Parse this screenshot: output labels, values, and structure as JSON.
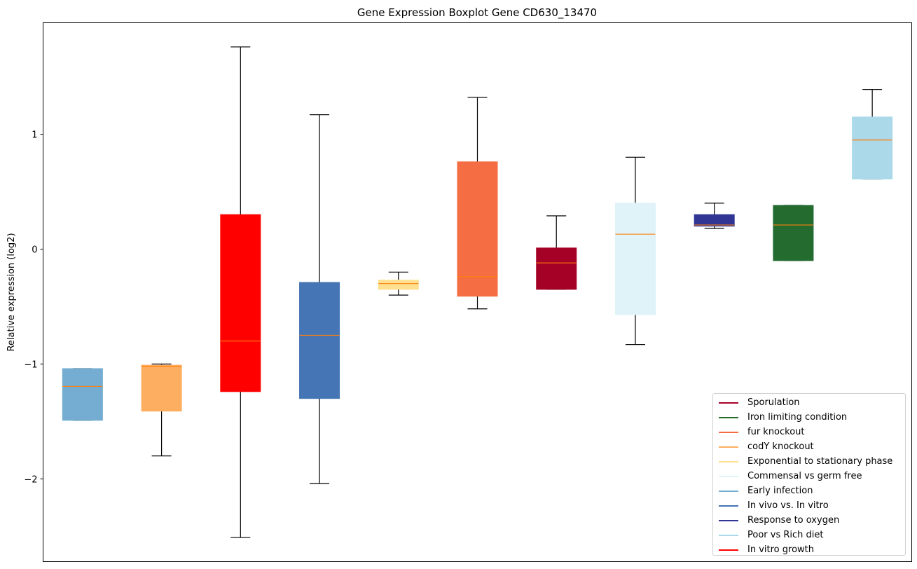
{
  "chart_data": {
    "type": "boxplot",
    "title": "Gene Expression Boxplot Gene CD630_13470",
    "xlabel": "",
    "ylabel": "Relative expression (log2)",
    "ylim": [
      -2.72,
      1.97
    ],
    "yticks": [
      -2,
      -1,
      0,
      1
    ],
    "ytick_labels": [
      "−2",
      "−1",
      "0",
      "1"
    ],
    "grid": false,
    "legend_placement": "lower-right",
    "median_color": "#ff7f0e",
    "boxes": [
      {
        "name": "Early infection",
        "color": "#74add1",
        "whislo": -1.49,
        "q1": -1.49,
        "med": -1.195,
        "q3": -1.04,
        "whishi": -1.04
      },
      {
        "name": "codY knockout",
        "color": "#fdae61",
        "whislo": -1.8,
        "q1": -1.41,
        "med": -1.02,
        "q3": -1.01,
        "whishi": -1.0
      },
      {
        "name": "In vitro growth",
        "color": "#ff0000",
        "whislo": -2.51,
        "q1": -1.24,
        "med": -0.8,
        "q3": 0.3,
        "whishi": 1.76
      },
      {
        "name": "In vivo vs. In vitro",
        "color": "#4575b4",
        "whislo": -2.04,
        "q1": -1.3,
        "med": -0.75,
        "q3": -0.29,
        "whishi": 1.17
      },
      {
        "name": "Exponential to stationary phase",
        "color": "#fee090",
        "whislo": -0.4,
        "q1": -0.35,
        "med": -0.3,
        "q3": -0.27,
        "whishi": -0.2
      },
      {
        "name": "fur knockout",
        "color": "#f46d43",
        "whislo": -0.52,
        "q1": -0.41,
        "med": -0.24,
        "q3": 0.76,
        "whishi": 1.32
      },
      {
        "name": "Sporulation",
        "color": "#a50026",
        "whislo": -0.35,
        "q1": -0.35,
        "med": -0.12,
        "q3": 0.01,
        "whishi": 0.29
      },
      {
        "name": "Commensal vs germ free",
        "color": "#e0f3f8",
        "whislo": -0.83,
        "q1": -0.57,
        "med": 0.13,
        "q3": 0.4,
        "whishi": 0.8
      },
      {
        "name": "Response to oxygen",
        "color": "#313695",
        "whislo": 0.18,
        "q1": 0.2,
        "med": 0.21,
        "q3": 0.3,
        "whishi": 0.4
      },
      {
        "name": "Iron limiting condition",
        "color": "#236b2e",
        "whislo": -0.1,
        "q1": -0.1,
        "med": 0.21,
        "q3": 0.38,
        "whishi": 0.38
      },
      {
        "name": "Poor vs Rich diet",
        "color": "#abd9e9",
        "whislo": 0.61,
        "q1": 0.61,
        "med": 0.95,
        "q3": 1.15,
        "whishi": 1.39
      }
    ],
    "legend": [
      {
        "label": "Sporulation",
        "color": "#a50026"
      },
      {
        "label": "Iron limiting condition",
        "color": "#236b2e"
      },
      {
        "label": "fur knockout",
        "color": "#f46d43"
      },
      {
        "label": "codY knockout",
        "color": "#fdae61"
      },
      {
        "label": "Exponential to stationary phase",
        "color": "#fee090"
      },
      {
        "label": "Commensal vs germ free",
        "color": "#e0f3f8"
      },
      {
        "label": "Early infection",
        "color": "#74add1"
      },
      {
        "label": "In vivo vs. In vitro",
        "color": "#4575b4"
      },
      {
        "label": "Response to oxygen",
        "color": "#313695"
      },
      {
        "label": "Poor vs Rich diet",
        "color": "#abd9e9"
      },
      {
        "label": "In vitro growth",
        "color": "#ff0000"
      }
    ]
  }
}
